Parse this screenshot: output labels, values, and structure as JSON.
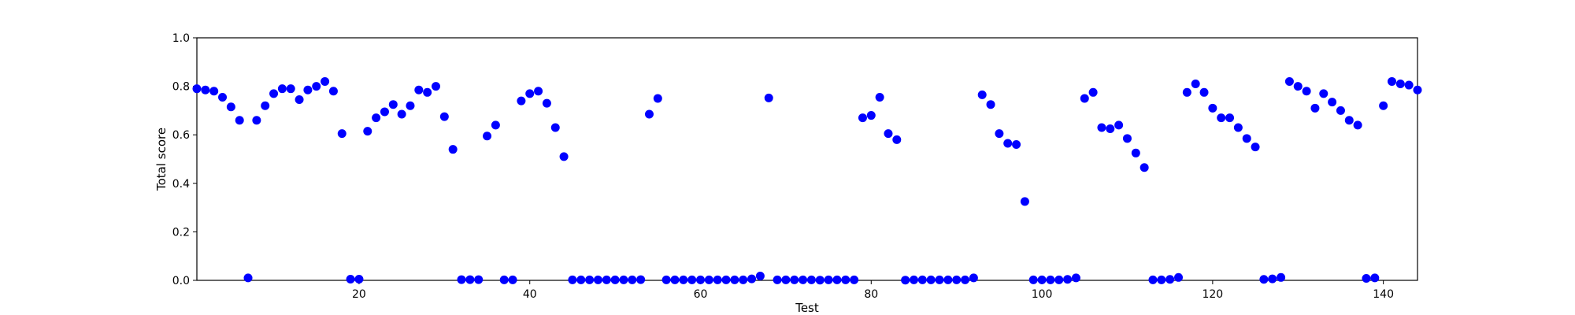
{
  "chart_data": {
    "type": "scatter",
    "xlabel": "Test",
    "ylabel": "Total score",
    "xlim": [
      1,
      144
    ],
    "ylim": [
      0.0,
      1.0
    ],
    "x_ticks": [
      20,
      40,
      60,
      80,
      100,
      120,
      140
    ],
    "x_tick_labels": [
      "20",
      "40",
      "60",
      "80",
      "100",
      "120",
      "140"
    ],
    "y_ticks": [
      0.0,
      0.2,
      0.4,
      0.6,
      0.8,
      1.0
    ],
    "y_tick_labels": [
      "0.0",
      "0.2",
      "0.4",
      "0.6",
      "0.8",
      "1.0"
    ],
    "grid": false,
    "marker_color": "#0000ff",
    "series": [
      {
        "x": [
          1,
          2,
          3,
          4,
          5,
          6,
          7,
          8,
          9,
          10,
          11,
          12,
          13,
          14,
          15,
          16,
          17,
          18,
          19,
          20,
          21,
          22,
          23,
          24,
          25,
          26,
          27,
          28,
          29,
          30,
          31,
          32,
          33,
          34,
          35,
          36,
          37,
          38,
          39,
          40,
          41,
          42,
          43,
          44,
          45,
          46,
          47,
          48,
          49,
          50,
          51,
          52,
          53,
          54,
          55,
          56,
          57,
          58,
          59,
          60,
          61,
          62,
          63,
          64,
          65,
          66,
          67,
          68,
          69,
          70,
          71,
          72,
          73,
          74,
          75,
          76,
          77,
          78,
          79,
          80,
          81,
          82,
          83,
          84,
          85,
          86,
          87,
          88,
          89,
          90,
          91,
          92,
          93,
          94,
          95,
          96,
          97,
          98,
          99,
          100,
          101,
          102,
          103,
          104,
          105,
          106,
          107,
          108,
          109,
          110,
          111,
          112,
          113,
          114,
          115,
          116,
          117,
          118,
          119,
          120,
          121,
          122,
          123,
          124,
          125,
          126,
          127,
          128,
          129,
          130,
          131,
          132,
          133,
          134,
          135,
          136,
          137,
          138,
          139,
          140,
          141,
          142,
          143,
          144
        ],
        "y": [
          0.79,
          0.785,
          0.78,
          0.755,
          0.715,
          0.66,
          0.01,
          0.66,
          0.72,
          0.77,
          0.79,
          0.79,
          0.745,
          0.785,
          0.8,
          0.82,
          0.78,
          0.605,
          0.005,
          0.005,
          0.615,
          0.67,
          0.695,
          0.725,
          0.685,
          0.72,
          0.785,
          0.775,
          0.8,
          0.675,
          0.54,
          0.003,
          0.003,
          0.003,
          0.595,
          0.64,
          0.002,
          0.002,
          0.74,
          0.77,
          0.78,
          0.73,
          0.63,
          0.51,
          0.002,
          0.002,
          0.002,
          0.002,
          0.002,
          0.002,
          0.002,
          0.002,
          0.003,
          0.685,
          0.75,
          0.002,
          0.002,
          0.002,
          0.002,
          0.002,
          0.002,
          0.002,
          0.002,
          0.002,
          0.002,
          0.006,
          0.018,
          0.752,
          0.002,
          0.002,
          0.002,
          0.002,
          0.002,
          0.001,
          0.002,
          0.002,
          0.002,
          0.002,
          0.67,
          0.68,
          0.755,
          0.605,
          0.58,
          0.001,
          0.002,
          0.002,
          0.002,
          0.002,
          0.002,
          0.002,
          0.002,
          0.01,
          0.765,
          0.725,
          0.605,
          0.565,
          0.56,
          0.325,
          0.002,
          0.002,
          0.002,
          0.002,
          0.004,
          0.01,
          0.75,
          0.775,
          0.63,
          0.625,
          0.64,
          0.585,
          0.525,
          0.465,
          0.002,
          0.002,
          0.004,
          0.012,
          0.775,
          0.81,
          0.775,
          0.71,
          0.67,
          0.67,
          0.63,
          0.585,
          0.55,
          0.004,
          0.006,
          0.012,
          0.82,
          0.8,
          0.78,
          0.71,
          0.77,
          0.735,
          0.7,
          0.66,
          0.64,
          0.008,
          0.01,
          0.72,
          0.82,
          0.81,
          0.805,
          0.785
        ]
      }
    ]
  }
}
